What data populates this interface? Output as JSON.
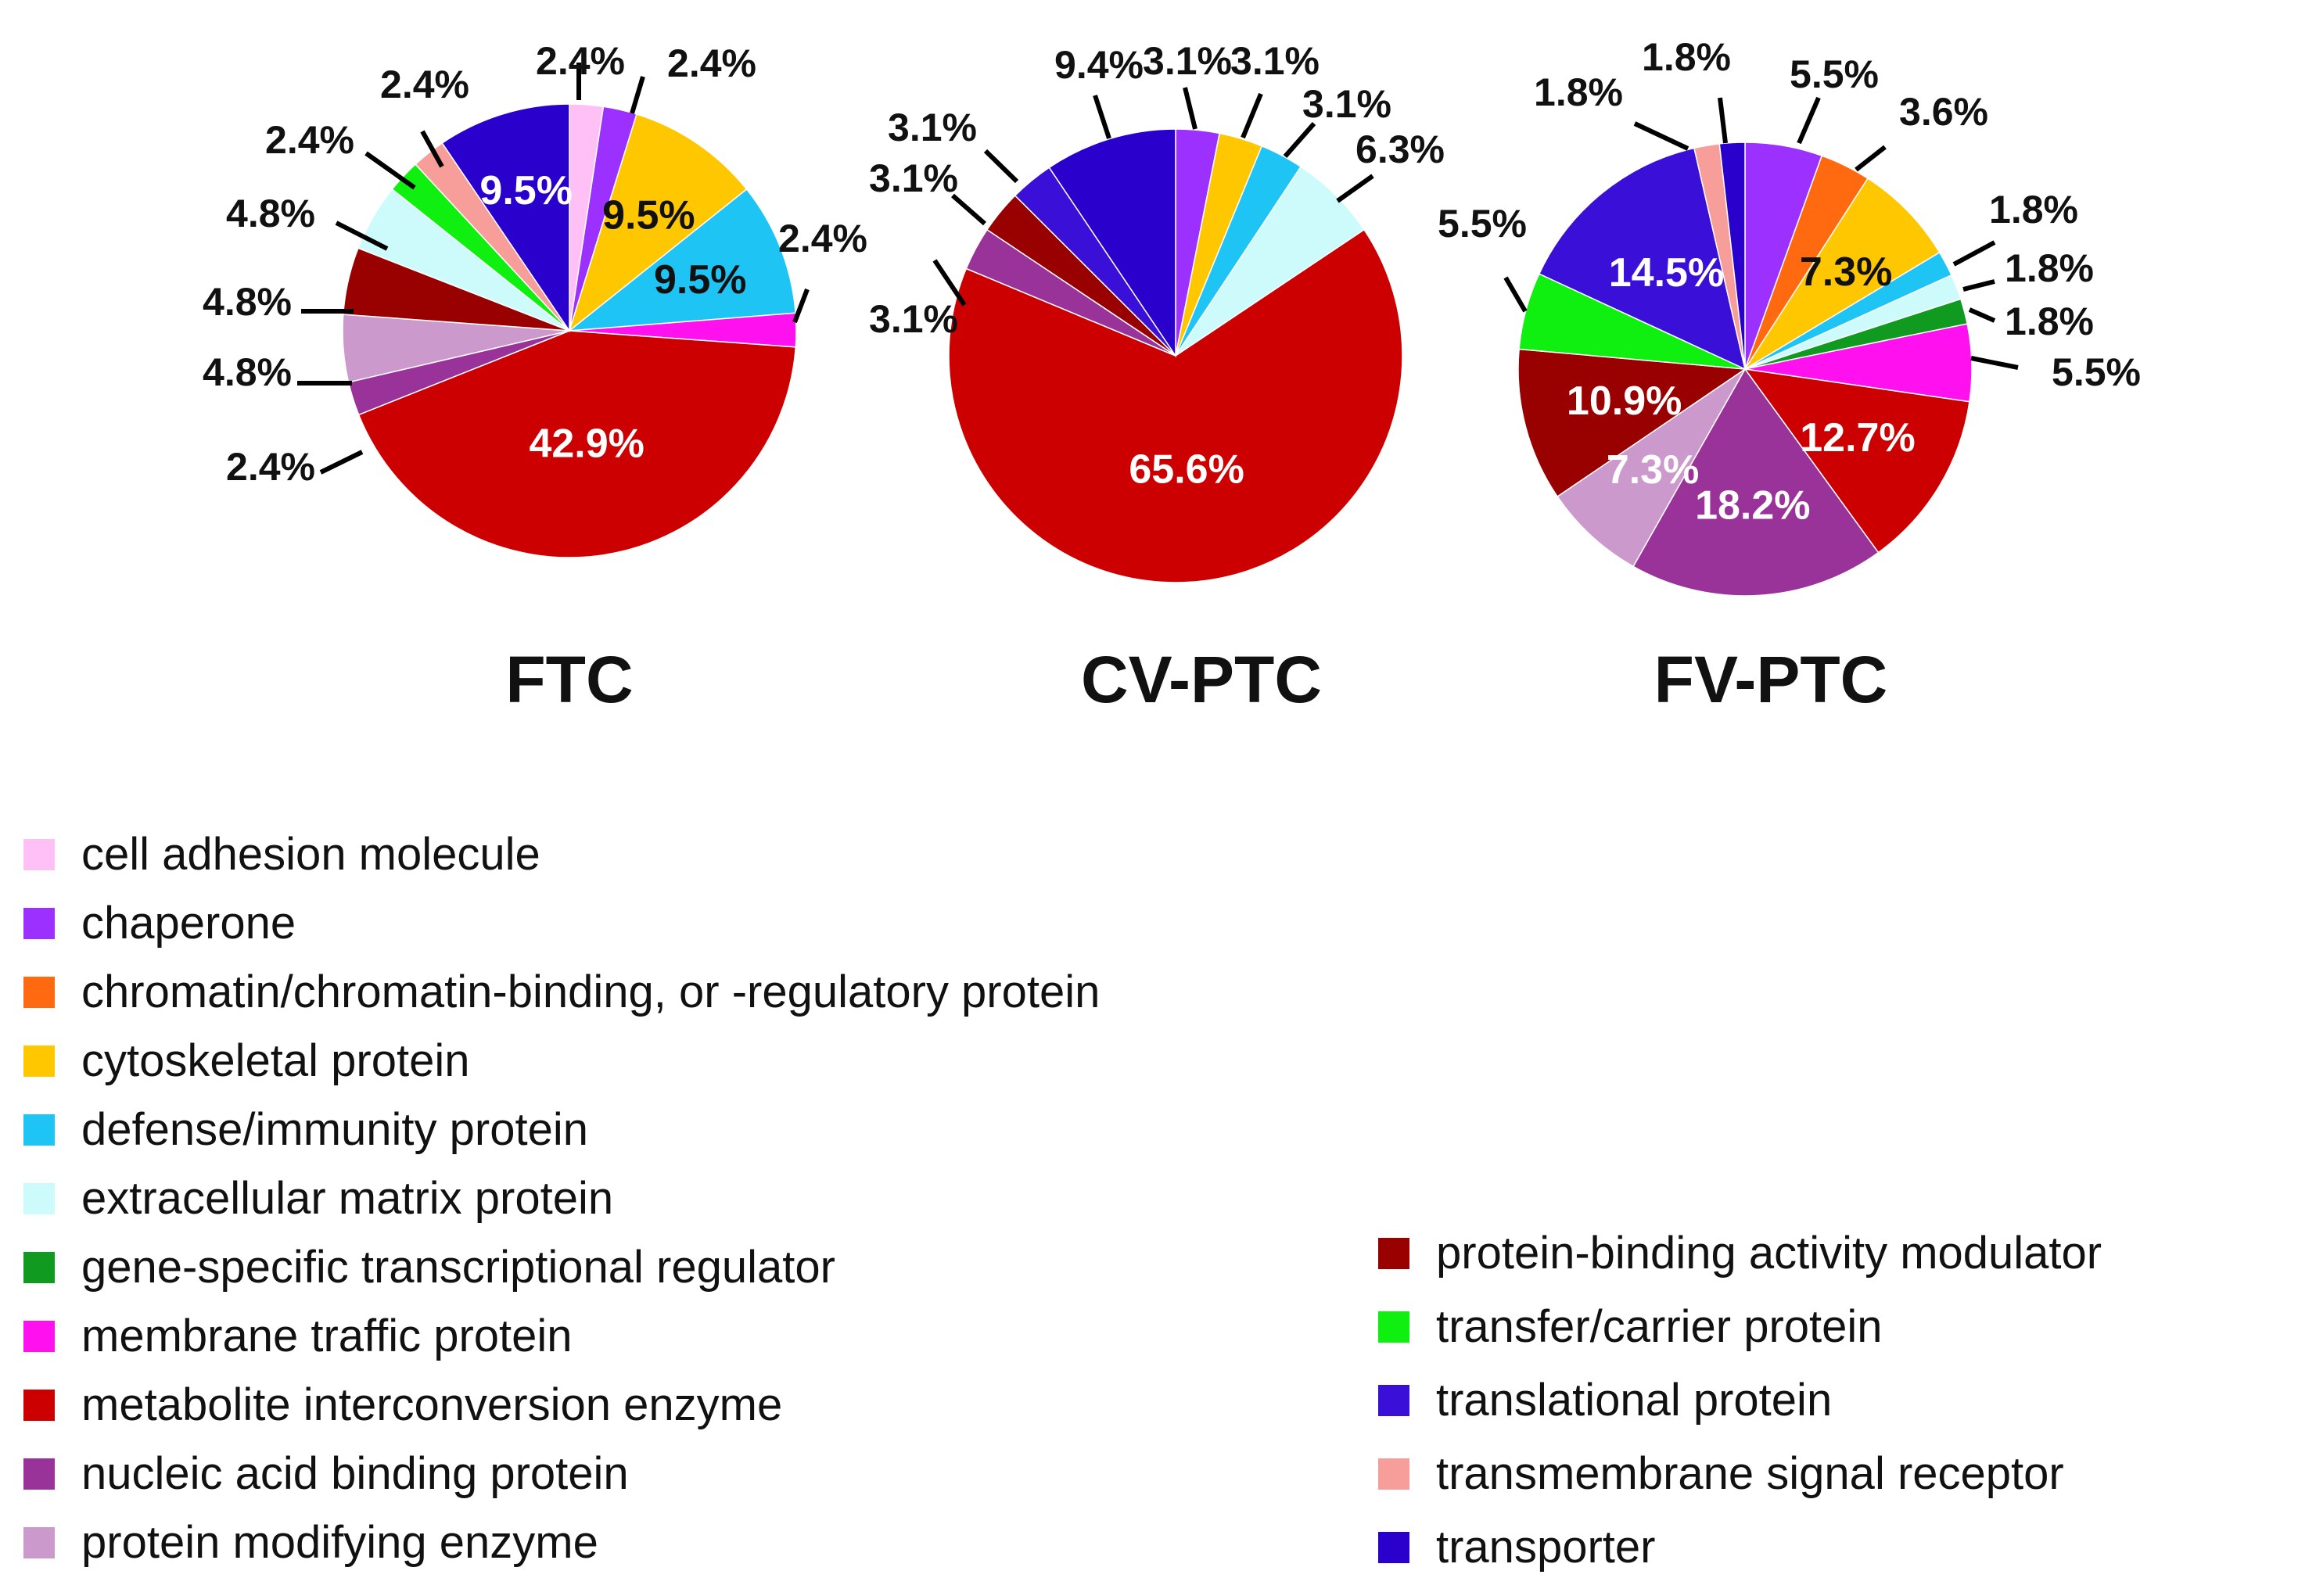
{
  "chart_data": {
    "type": "pie",
    "categories": [
      "cell adhesion molecule",
      "chaperone",
      "chromatin/chromatin-binding, or  -regulatory protein",
      "cytoskeletal protein",
      "defense/immunity protein",
      "extracellular matrix protein",
      "gene-specific transcriptional regulator",
      "membrane traffic protein",
      "metabolite interconversion enzyme",
      "nucleic acid binding protein",
      "protein modifying enzyme",
      "protein-binding activity modulator",
      "transfer/carrier protein",
      "translational protein",
      "transmembrane signal receptor",
      "transporter"
    ],
    "colors": {
      "cell adhesion molecule": "#ffc0f5",
      "chaperone": "#9b30ff",
      "chromatin/chromatin-binding, or  -regulatory protein": "#ff6a10",
      "cytoskeletal protein": "#ffc700",
      "defense/immunity protein": "#1ec4f3",
      "extracellular matrix protein": "#cdfbfb",
      "gene-specific transcriptional regulator": "#109a20",
      "membrane traffic protein": "#ff10ef",
      "metabolite interconversion enzyme": "#cc0000",
      "nucleic acid binding protein": "#993399",
      "protein modifying enzyme": "#cc99cc",
      "protein-binding activity modulator": "#990000",
      "transfer/carrier protein": "#10f010",
      "translational protein": "#3a10d8",
      "transmembrane signal receptor": "#f79e9a",
      "transporter": "#2a00cc"
    },
    "charts": [
      {
        "title": "FTC",
        "slices": [
          {
            "category": "cell adhesion molecule",
            "value": 2.4,
            "label": "2.4%"
          },
          {
            "category": "chaperone",
            "value": 2.4,
            "label": "2.4%"
          },
          {
            "category": "cytoskeletal protein",
            "value": 9.5,
            "label": "9.5%"
          },
          {
            "category": "defense/immunity protein",
            "value": 9.5,
            "label": "9.5%"
          },
          {
            "category": "membrane traffic protein",
            "value": 2.4,
            "label": "2.4%"
          },
          {
            "category": "metabolite interconversion enzyme",
            "value": 42.9,
            "label": "42.9%"
          },
          {
            "category": "nucleic acid binding protein",
            "value": 2.4,
            "label": "2.4%"
          },
          {
            "category": "protein modifying enzyme",
            "value": 4.8,
            "label": "4.8%"
          },
          {
            "category": "protein-binding activity modulator",
            "value": 4.8,
            "label": "4.8%"
          },
          {
            "category": "extracellular matrix protein",
            "value": 4.8,
            "label": "4.8%"
          },
          {
            "category": "transfer/carrier protein",
            "value": 2.4,
            "label": "2.4%"
          },
          {
            "category": "transmembrane signal receptor",
            "value": 2.4,
            "label": "2.4%"
          },
          {
            "category": "transporter",
            "value": 9.5,
            "label": "9.5%"
          }
        ]
      },
      {
        "title": "CV-PTC",
        "slices": [
          {
            "category": "chaperone",
            "value": 3.1,
            "label": "3.1%"
          },
          {
            "category": "cytoskeletal protein",
            "value": 3.1,
            "label": "3.1%"
          },
          {
            "category": "defense/immunity protein",
            "value": 3.1,
            "label": "3.1%"
          },
          {
            "category": "extracellular matrix protein",
            "value": 6.3,
            "label": "6.3%"
          },
          {
            "category": "metabolite interconversion enzyme",
            "value": 65.6,
            "label": "65.6%"
          },
          {
            "category": "nucleic acid binding protein",
            "value": 3.1,
            "label": "3.1%"
          },
          {
            "category": "protein-binding activity modulator",
            "value": 3.1,
            "label": "3.1%"
          },
          {
            "category": "translational protein",
            "value": 3.1,
            "label": "3.1%"
          },
          {
            "category": "transporter",
            "value": 9.4,
            "label": "9.4%"
          }
        ]
      },
      {
        "title": "FV-PTC",
        "slices": [
          {
            "category": "chaperone",
            "value": 5.5,
            "label": "5.5%"
          },
          {
            "category": "chromatin/chromatin-binding, or  -regulatory protein",
            "value": 3.6,
            "label": "3.6%"
          },
          {
            "category": "cytoskeletal protein",
            "value": 7.3,
            "label": "7.3%"
          },
          {
            "category": "defense/immunity protein",
            "value": 1.8,
            "label": "1.8%"
          },
          {
            "category": "extracellular matrix protein",
            "value": 1.8,
            "label": "1.8%"
          },
          {
            "category": "gene-specific transcriptional regulator",
            "value": 1.8,
            "label": "1.8%"
          },
          {
            "category": "membrane traffic protein",
            "value": 5.5,
            "label": "5.5%"
          },
          {
            "category": "metabolite interconversion enzyme",
            "value": 12.7,
            "label": "12.7%"
          },
          {
            "category": "nucleic acid binding protein",
            "value": 18.2,
            "label": "18.2%"
          },
          {
            "category": "protein modifying enzyme",
            "value": 7.3,
            "label": "7.3%"
          },
          {
            "category": "protein-binding activity modulator",
            "value": 10.9,
            "label": "10.9%"
          },
          {
            "category": "transfer/carrier protein",
            "value": 5.5,
            "label": "5.5%"
          },
          {
            "category": "translational protein",
            "value": 14.5,
            "label": "14.5%"
          },
          {
            "category": "transmembrane signal receptor",
            "value": 1.8,
            "label": "1.8%"
          },
          {
            "category": "transporter",
            "value": 1.8,
            "label": "1.8%"
          }
        ]
      }
    ],
    "legend_columns": [
      [
        "cell adhesion molecule",
        "chaperone",
        "chromatin/chromatin-binding, or  -regulatory protein",
        "cytoskeletal protein",
        "defense/immunity protein",
        "extracellular matrix protein",
        "gene-specific transcriptional regulator",
        "membrane traffic protein",
        "metabolite interconversion enzyme",
        "nucleic acid binding protein",
        "protein modifying enzyme"
      ],
      [
        "protein-binding activity modulator",
        "transfer/carrier protein",
        "translational protein",
        "transmembrane signal receptor",
        "transporter"
      ]
    ],
    "legend_position": "bottom"
  }
}
